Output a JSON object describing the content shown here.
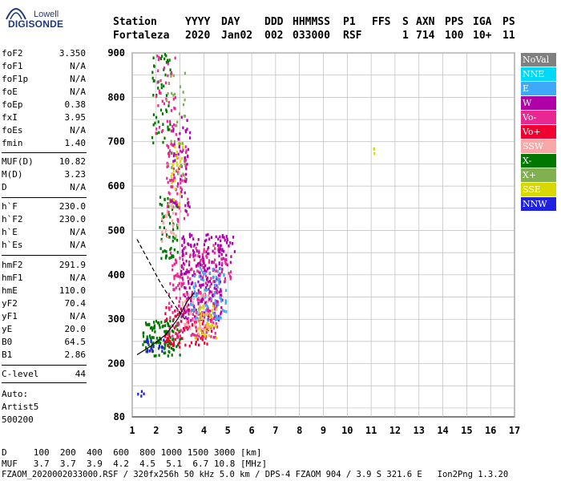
{
  "logo": {
    "line1": "Lowell",
    "line2": "DIGISONDE"
  },
  "header": {
    "labels": [
      "Station",
      "YYYY",
      "DAY",
      "DDD",
      "HHMMSS",
      "P1",
      "FFS",
      "S",
      "AXN",
      "PPS",
      "IGA",
      "PS"
    ],
    "values": [
      "Fortaleza",
      "2020",
      "Jan02",
      "002",
      "033000",
      "RSF",
      "",
      "1",
      "714",
      "100",
      "10+",
      "11"
    ]
  },
  "params": [
    {
      "name": "foF2",
      "value": "3.350"
    },
    {
      "name": "foF1",
      "value": "N/A"
    },
    {
      "name": "foF1p",
      "value": "N/A"
    },
    {
      "name": "foE",
      "value": "N/A"
    },
    {
      "name": "foEp",
      "value": "0.38"
    },
    {
      "name": "fxI",
      "value": "3.95"
    },
    {
      "name": "foEs",
      "value": "N/A"
    },
    {
      "name": "fmin",
      "value": "1.40"
    },
    {
      "name": "MUF(D)",
      "value": "10.82"
    },
    {
      "name": "M(D)",
      "value": "3.23"
    },
    {
      "name": "D",
      "value": "N/A"
    },
    {
      "name": "h`F",
      "value": "230.0"
    },
    {
      "name": "h`F2",
      "value": "230.0"
    },
    {
      "name": "h`E",
      "value": "N/A"
    },
    {
      "name": "h`Es",
      "value": "N/A"
    },
    {
      "name": "hmF2",
      "value": "291.9"
    },
    {
      "name": "hmF1",
      "value": "N/A"
    },
    {
      "name": "hmE",
      "value": "110.0"
    },
    {
      "name": "yF2",
      "value": "70.4"
    },
    {
      "name": "yF1",
      "value": "N/A"
    },
    {
      "name": "yE",
      "value": "20.0"
    },
    {
      "name": "B0",
      "value": "64.5"
    },
    {
      "name": "B1",
      "value": "2.86"
    },
    {
      "name": "C-level",
      "value": "44"
    }
  ],
  "auto": {
    "line1": "Auto:",
    "line2": "Artist5",
    "line3": "500200"
  },
  "legend": [
    {
      "label": "NoVal",
      "color": "#808080"
    },
    {
      "label": "NNE",
      "color": "#00d8f8"
    },
    {
      "label": "E",
      "color": "#40a8f8"
    },
    {
      "label": "W",
      "color": "#b000a8"
    },
    {
      "label": "Vo-",
      "color": "#e82890"
    },
    {
      "label": "Vo+",
      "color": "#f00030"
    },
    {
      "label": "SSW",
      "color": "#f8a8a8"
    },
    {
      "label": "X-",
      "color": "#007800"
    },
    {
      "label": "X+",
      "color": "#80b050"
    },
    {
      "label": "SSE",
      "color": "#d8d800"
    },
    {
      "label": "NNW",
      "color": "#2020e0"
    }
  ],
  "chart_data": {
    "type": "scatter",
    "xlim": [
      1,
      17
    ],
    "ylim": [
      80,
      900
    ],
    "xticks": [
      "1",
      "2",
      "3",
      "4",
      "5",
      "6",
      "7",
      "8",
      "9",
      "10",
      "11",
      "12",
      "13",
      "14",
      "15",
      "16",
      "17"
    ],
    "yticks": [
      "80",
      "200",
      "300",
      "400",
      "500",
      "600",
      "700",
      "800",
      "900"
    ],
    "grid": true,
    "clusters": [
      {
        "color": "#007800",
        "x": [
          1.4,
          3.0
        ],
        "y": [
          220,
          300
        ],
        "n": 120
      },
      {
        "color": "#f00030",
        "x": [
          2.3,
          4.3
        ],
        "y": [
          240,
          330
        ],
        "n": 90
      },
      {
        "color": "#e82890",
        "x": [
          2.5,
          4.6
        ],
        "y": [
          260,
          470
        ],
        "n": 220
      },
      {
        "color": "#b000a8",
        "x": [
          3.0,
          4.8
        ],
        "y": [
          300,
          500
        ],
        "n": 200
      },
      {
        "color": "#40a8f8",
        "x": [
          3.4,
          4.9
        ],
        "y": [
          300,
          420
        ],
        "n": 90
      },
      {
        "color": "#d8d800",
        "x": [
          3.6,
          4.5
        ],
        "y": [
          260,
          340
        ],
        "n": 40
      },
      {
        "color": "#2020e0",
        "x": [
          1.5,
          2.3
        ],
        "y": [
          230,
          260
        ],
        "n": 20
      },
      {
        "color": "#f8a8a8",
        "x": [
          3.0,
          4.2
        ],
        "y": [
          280,
          360
        ],
        "n": 40
      },
      {
        "color": "#007800",
        "x": [
          2.1,
          2.9
        ],
        "y": [
          440,
          580
        ],
        "n": 60
      },
      {
        "color": "#f8a8a8",
        "x": [
          2.2,
          3.0
        ],
        "y": [
          470,
          570
        ],
        "n": 30
      },
      {
        "color": "#e82890",
        "x": [
          2.4,
          3.3
        ],
        "y": [
          520,
          720
        ],
        "n": 70
      },
      {
        "color": "#b000a8",
        "x": [
          2.6,
          3.4
        ],
        "y": [
          540,
          760
        ],
        "n": 50
      },
      {
        "color": "#d8d800",
        "x": [
          2.6,
          3.2
        ],
        "y": [
          560,
          700
        ],
        "n": 25
      },
      {
        "color": "#007800",
        "x": [
          1.8,
          2.6
        ],
        "y": [
          700,
          900
        ],
        "n": 50
      },
      {
        "color": "#e82890",
        "x": [
          1.9,
          2.8
        ],
        "y": [
          720,
          900
        ],
        "n": 40
      },
      {
        "color": "#80b050",
        "x": [
          2.4,
          3.2
        ],
        "y": [
          620,
          860
        ],
        "n": 30
      },
      {
        "color": "#b000a8",
        "x": [
          4.5,
          5.3
        ],
        "y": [
          420,
          490
        ],
        "n": 25
      },
      {
        "color": "#e82890",
        "x": [
          4.6,
          5.1
        ],
        "y": [
          380,
          440
        ],
        "n": 15
      },
      {
        "color": "#2020e0",
        "x": [
          1.1,
          1.5
        ],
        "y": [
          130,
          150
        ],
        "n": 4
      },
      {
        "color": "#d8d800",
        "x": [
          11.0,
          11.1
        ],
        "y": [
          670,
          690
        ],
        "n": 3
      }
    ],
    "trace_lines": [
      {
        "style": "solid",
        "x": [
          1.2,
          1.8,
          2.4,
          2.9,
          3.3,
          3.6
        ],
        "y": [
          220,
          240,
          265,
          300,
          340,
          360
        ]
      },
      {
        "style": "dashed",
        "x": [
          1.2,
          1.6,
          2.2,
          2.8,
          3.2
        ],
        "y": [
          480,
          440,
          380,
          330,
          300
        ]
      }
    ]
  },
  "distance_table": {
    "d_label": "D",
    "d_values": [
      "100",
      "200",
      "400",
      "600",
      "800",
      "1000",
      "1500",
      "3000"
    ],
    "d_unit": "[km]",
    "muf_label": "MUF",
    "muf_values": [
      "3.7",
      "3.7",
      "3.9",
      "4.2",
      "4.5",
      "5.1",
      "6.7",
      "10.8"
    ],
    "muf_unit": "[MHz]"
  },
  "footer": "FZAOM_2020002033000.RSF / 320fx256h 50 kHz 5.0 km / DPS-4 FZAOM 904 / 3.9 S 321.6 E   Ion2Png 1.3.20"
}
